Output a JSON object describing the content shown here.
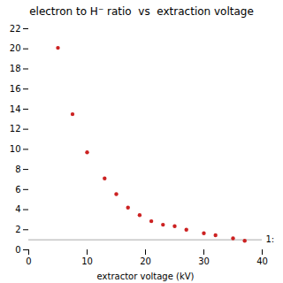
{
  "chart_data": {
    "type": "scatter",
    "title": "electron to H⁻ ratio  vs  extraction voltage",
    "xlabel": "extractor voltage (kV)",
    "x": [
      5,
      7.5,
      10,
      13,
      15,
      17,
      19,
      21,
      23,
      25,
      27,
      30,
      32,
      35,
      37
    ],
    "values": [
      20.1,
      13.5,
      9.7,
      7.1,
      5.55,
      4.2,
      3.45,
      2.85,
      2.5,
      2.35,
      2.0,
      1.65,
      1.45,
      1.15,
      0.9
    ],
    "color": "#cc2222",
    "xlim": [
      0,
      40
    ],
    "ylim": [
      0,
      22
    ],
    "xticks": [
      0,
      10,
      20,
      30,
      40
    ],
    "yticks": [
      0,
      2,
      4,
      6,
      8,
      10,
      12,
      14,
      16,
      18,
      20,
      22
    ],
    "reference_line": {
      "y": 1.0,
      "label": "1:",
      "color": "#aaaaaa"
    },
    "grid": false
  }
}
